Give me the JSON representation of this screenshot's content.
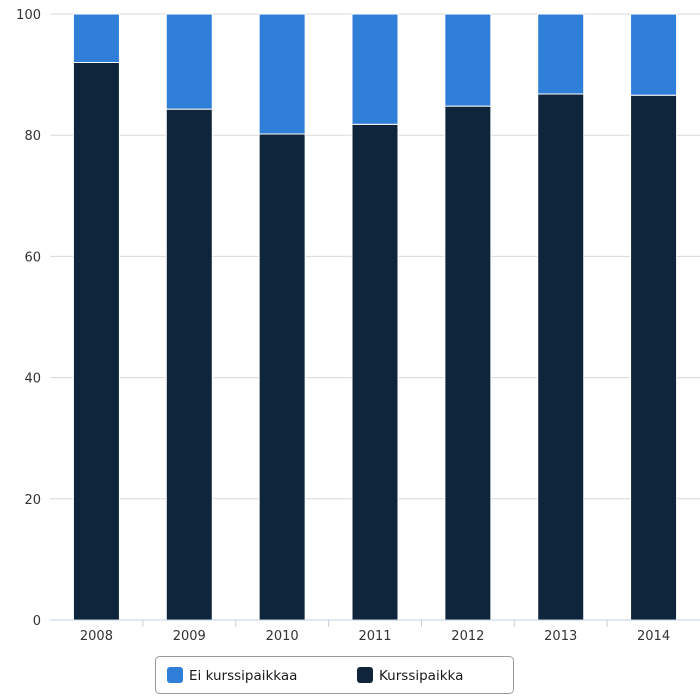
{
  "chart_data": {
    "type": "bar",
    "stacked": true,
    "categories": [
      "2008",
      "2009",
      "2010",
      "2011",
      "2012",
      "2013",
      "2014"
    ],
    "series": [
      {
        "name": "Kurssipaikka",
        "color": "#0f253b",
        "values": [
          92,
          84.3,
          80.2,
          81.8,
          84.8,
          86.8,
          86.6
        ]
      },
      {
        "name": "Ei kurssipaikkaa",
        "color": "#2f7ed8",
        "values": [
          8,
          15.7,
          19.8,
          18.2,
          15.2,
          13.2,
          13.4
        ]
      }
    ],
    "ylim": [
      0,
      100
    ],
    "yticks": [
      "0",
      "20",
      "40",
      "60",
      "80",
      "100"
    ],
    "grid": true,
    "legend": {
      "position": "bottom-center",
      "items": [
        "Ei kurssipaikkaa",
        "Kurssipaikka"
      ]
    }
  }
}
